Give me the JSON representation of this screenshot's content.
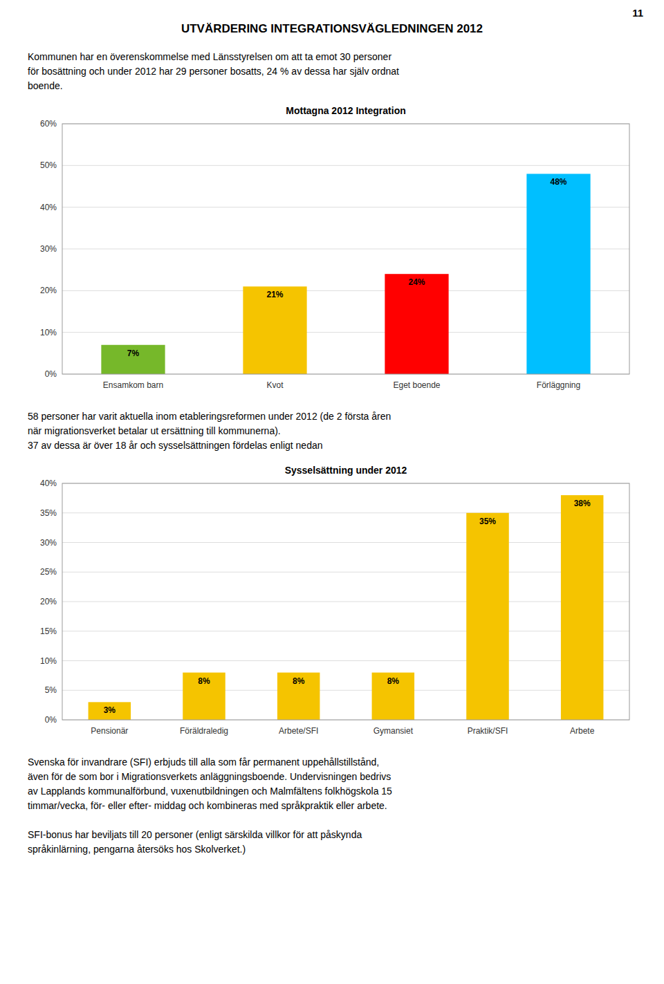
{
  "page_number": "11",
  "title": "UTVÄRDERING INTEGRATIONSVÄGLEDNINGEN 2012",
  "texts": [
    "Kommunen har en överenskommelse med Länsstyrelsen om att ta emot 30 personer\nför bosättning och under 2012 har 29 personer bosatts, 24 % av dessa har själv ordnat\nboende.",
    "58 personer har varit aktuella inom etableringsreformen under 2012 (de 2 första åren\nnär migrationsverket betalar ut ersättning till kommunerna).\n37 av dessa är över 18 år och sysselsättningen fördelas enligt nedan",
    "Svenska för invandrare (SFI) erbjuds till alla som får permanent uppehållstillstånd,\näven för de som bor i Migrationsverkets anläggningsboende. Undervisningen bedrivs\nav Lapplands kommunalförbund, vuxenutbildningen och Malmfältens folkhögskola 15\ntimmar/vecka, för- eller efter- middag och kombineras med språkpraktik eller arbete.",
    "SFI-bonus har beviljats till 20 personer (enligt särskilda villkor för att påskynda\nspråkinlärning, pengarna återsöks hos Skolverket.)"
  ],
  "chart_data": [
    {
      "type": "bar",
      "title": "Mottagna 2012 Integration",
      "categories": [
        "Ensamkom barn",
        "Kvot",
        "Eget boende",
        "Förläggning"
      ],
      "values": [
        7,
        21,
        24,
        48
      ],
      "value_labels": [
        "7%",
        "21%",
        "24%",
        "48%"
      ],
      "colors": [
        "#76b82a",
        "#f5c400",
        "#ff0000",
        "#00bfff"
      ],
      "ylim": [
        0,
        60
      ],
      "yticks": [
        {
          "value": 0,
          "label": "0%"
        },
        {
          "value": 10,
          "label": "10%"
        },
        {
          "value": 20,
          "label": "20%"
        },
        {
          "value": 30,
          "label": "30%"
        },
        {
          "value": 40,
          "label": "40%"
        },
        {
          "value": 50,
          "label": "50%"
        },
        {
          "value": 60,
          "label": "60%"
        }
      ],
      "grid": true,
      "data_labels": true
    },
    {
      "type": "bar",
      "title": "Sysselsättning under 2012",
      "categories": [
        "Pensionär",
        "Föräldraledig",
        "Arbete/SFI",
        "Gymansiet",
        "Praktik/SFI",
        "Arbete"
      ],
      "values": [
        3,
        8,
        8,
        8,
        35,
        38
      ],
      "value_labels": [
        "3%",
        "8%",
        "8%",
        "8%",
        "35%",
        "38%"
      ],
      "color": "#f5c400",
      "ylim": [
        0,
        40
      ],
      "yticks": [
        {
          "value": 0,
          "label": "0%"
        },
        {
          "value": 5,
          "label": "5%"
        },
        {
          "value": 10,
          "label": "10%"
        },
        {
          "value": 15,
          "label": "15%"
        },
        {
          "value": 20,
          "label": "20%"
        },
        {
          "value": 25,
          "label": "25%"
        },
        {
          "value": 30,
          "label": "30%"
        },
        {
          "value": 35,
          "label": "35%"
        },
        {
          "value": 40,
          "label": "40%"
        }
      ],
      "grid": true,
      "data_labels": true
    }
  ]
}
